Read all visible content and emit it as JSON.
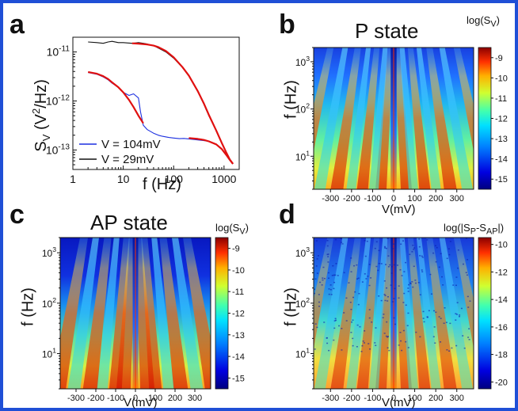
{
  "panels": {
    "a": {
      "letter": "a",
      "xlabel": "f (Hz)",
      "ylabel_main": "S",
      "ylabel_sub": "V",
      "ylabel_rest": "(V",
      "ylabel_sup": "2",
      "ylabel_end": "/Hz)"
    },
    "b": {
      "letter": "b",
      "title": "P state",
      "cbar_label_main": "log(S",
      "cbar_label_sub": "V",
      "cbar_label_end": ")",
      "ylabel": "f (Hz)",
      "xlabel": "V(mV)"
    },
    "c": {
      "letter": "c",
      "title": "AP state",
      "cbar_label_main": "log(S",
      "cbar_label_sub": "V",
      "cbar_label_end": ")",
      "ylabel": "f (Hz)",
      "xlabel": "V(mV)"
    },
    "d": {
      "letter": "d",
      "cbar_label_main": "log(|S",
      "cbar_label_sub1": "P",
      "cbar_label_mid": "-S",
      "cbar_label_sub2": "AP",
      "cbar_label_end": "|)",
      "ylabel": "f (Hz)",
      "xlabel": "V(mV)"
    }
  },
  "chart_data": [
    {
      "type": "line",
      "panel": "a",
      "xscale": "log",
      "yscale": "log",
      "xlim": [
        1,
        2000
      ],
      "ylim": [
        4e-14,
        2e-11
      ],
      "xticks": [
        "1",
        "10",
        "100",
        "1000"
      ],
      "yticks": [
        "10^-13",
        "10^-12",
        "10^-11"
      ],
      "series": [
        {
          "name": "V = 104mV",
          "color": "#1b2fe0",
          "x": [
            2,
            3,
            4,
            5,
            6,
            8,
            10,
            13,
            16,
            20,
            22,
            25,
            30,
            40,
            50,
            60,
            80,
            100,
            130,
            160,
            200,
            300,
            400,
            500,
            700,
            900,
            1100,
            1300,
            1500
          ],
          "y": [
            3.8e-12,
            3.5e-12,
            3.1e-12,
            2.7e-12,
            2.3e-12,
            1.9e-12,
            1.5e-12,
            1.3e-12,
            1.4e-12,
            1.15e-12,
            6e-13,
            3.2e-13,
            2.6e-13,
            2.2e-13,
            2e-13,
            1.9e-13,
            1.8e-13,
            1.75e-13,
            1.7e-13,
            1.72e-13,
            1.68e-13,
            1.6e-13,
            1.55e-13,
            1.5e-13,
            1.3e-13,
            1.05e-13,
            8e-14,
            6.2e-14,
            5.2e-14
          ]
        },
        {
          "name": "V = 29mV",
          "color": "#111111",
          "x": [
            2,
            3,
            4,
            5,
            6,
            8,
            10,
            15,
            20,
            25,
            30,
            40,
            50,
            70,
            100,
            150,
            200,
            300,
            400,
            500,
            700,
            900,
            1100,
            1300,
            1500
          ],
          "y": [
            1.6e-11,
            1.55e-11,
            1.5e-11,
            1.6e-11,
            1.65e-11,
            1.55e-11,
            1.55e-11,
            1.5e-11,
            1.55e-11,
            1.5e-11,
            1.45e-11,
            1.35e-11,
            1.2e-11,
            1e-11,
            7.5e-12,
            4.8e-12,
            3.3e-12,
            1.6e-12,
            8.5e-13,
            5e-13,
            2.5e-13,
            1.4e-13,
            9e-14,
            6.5e-14,
            5.2e-14
          ]
        },
        {
          "name": "",
          "color": "#e01010",
          "x": [
            2,
            3,
            4,
            5,
            6,
            8,
            10,
            13,
            16,
            20,
            25
          ],
          "y": [
            3.9e-12,
            3.6e-12,
            3.2e-12,
            2.8e-12,
            2.4e-12,
            1.9e-12,
            1.5e-12,
            1.05e-12,
            7.5e-13,
            5e-13,
            3.5e-13
          ]
        },
        {
          "name": "",
          "color": "#e01010",
          "x": [
            15,
            20,
            30,
            40,
            50,
            70,
            100,
            150,
            200,
            300,
            400,
            500,
            700,
            900,
            1100,
            1300,
            1500
          ],
          "y": [
            1.5e-11,
            1.48e-11,
            1.42e-11,
            1.35e-11,
            1.25e-11,
            1.05e-11,
            7.8e-12,
            4.9e-12,
            3.3e-12,
            1.6e-12,
            8.8e-13,
            5.2e-13,
            2.5e-13,
            1.4e-13,
            9e-14,
            6.4e-14,
            5.2e-14
          ]
        },
        {
          "name": "",
          "color": "#e01010",
          "x": [
            200,
            300,
            400,
            500,
            700,
            900,
            1100,
            1300,
            1500
          ],
          "y": [
            1.75e-13,
            1.68e-13,
            1.6e-13,
            1.5e-13,
            1.3e-13,
            1.05e-13,
            8e-14,
            6.3e-14,
            5.2e-14
          ]
        }
      ]
    },
    {
      "type": "heatmap",
      "panel": "b",
      "xlim": [
        -380,
        380
      ],
      "ylim": [
        2,
        2000
      ],
      "yscale": "log",
      "xticks": [
        "-300",
        "-200",
        "-100",
        "0",
        "100",
        "200",
        "300"
      ],
      "yticks": [
        "10^1",
        "10^2",
        "10^3"
      ],
      "colorbar": {
        "ticks": [
          "-9",
          "-10",
          "-11",
          "-12",
          "-13",
          "-14",
          "-15"
        ],
        "range": [
          -15.5,
          -8.5
        ]
      }
    },
    {
      "type": "heatmap",
      "panel": "c",
      "xlim": [
        -380,
        380
      ],
      "ylim": [
        2,
        2000
      ],
      "yscale": "log",
      "xticks": [
        "-300",
        "-200",
        "-100",
        "0",
        "100",
        "200",
        "300"
      ],
      "yticks": [
        "10^1",
        "10^2",
        "10^3"
      ],
      "colorbar": {
        "ticks": [
          "-9",
          "-10",
          "-11",
          "-12",
          "-13",
          "-14",
          "-15"
        ],
        "range": [
          -15.5,
          -8.5
        ]
      }
    },
    {
      "type": "heatmap",
      "panel": "d",
      "xlim": [
        -380,
        380
      ],
      "ylim": [
        2,
        2000
      ],
      "yscale": "log",
      "xticks": [
        "-300",
        "-200",
        "-100",
        "0",
        "100",
        "200",
        "300"
      ],
      "yticks": [
        "10^1",
        "10^2",
        "10^3"
      ],
      "colorbar": {
        "ticks": [
          "-10",
          "-12",
          "-14",
          "-16",
          "-18",
          "-20"
        ],
        "range": [
          -20.5,
          -9.5
        ]
      }
    }
  ],
  "colors": {
    "frame": "#1f4fd6"
  }
}
